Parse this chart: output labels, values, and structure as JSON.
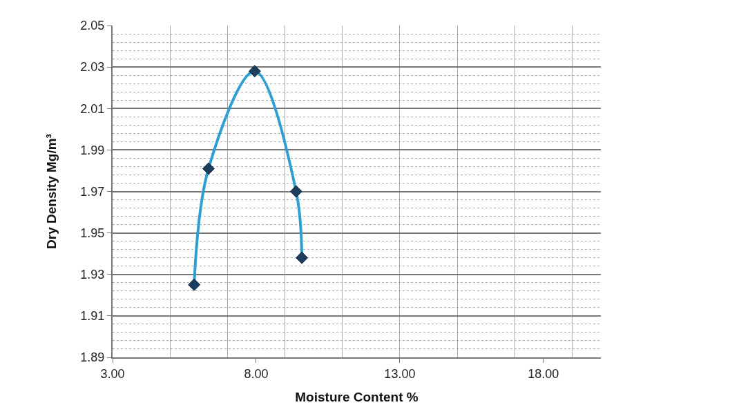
{
  "chart_data": {
    "type": "line",
    "xlabel": "Moisture Content %",
    "ylabel": "Dry Density Mg/m³",
    "x": [
      5.84,
      6.34,
      7.95,
      9.39,
      9.59
    ],
    "series": [
      {
        "color": "#2e9fd4",
        "values": [
          1.925,
          1.981,
          2.028,
          1.97,
          1.938
        ]
      }
    ],
    "xlim": [
      3,
      20
    ],
    "xticks": [
      {
        "value": 3,
        "label": "3.00"
      },
      {
        "value": 8,
        "label": "8.00"
      },
      {
        "value": 13,
        "label": "13.00"
      },
      {
        "value": 18,
        "label": "18.00"
      }
    ],
    "ylim": [
      1.89,
      2.05
    ],
    "yticks": [
      1.89,
      1.91,
      1.93,
      1.95,
      1.97,
      1.99,
      2.01,
      2.03,
      2.05
    ],
    "grid": true,
    "marker": "diamond",
    "line_style": "solid"
  }
}
